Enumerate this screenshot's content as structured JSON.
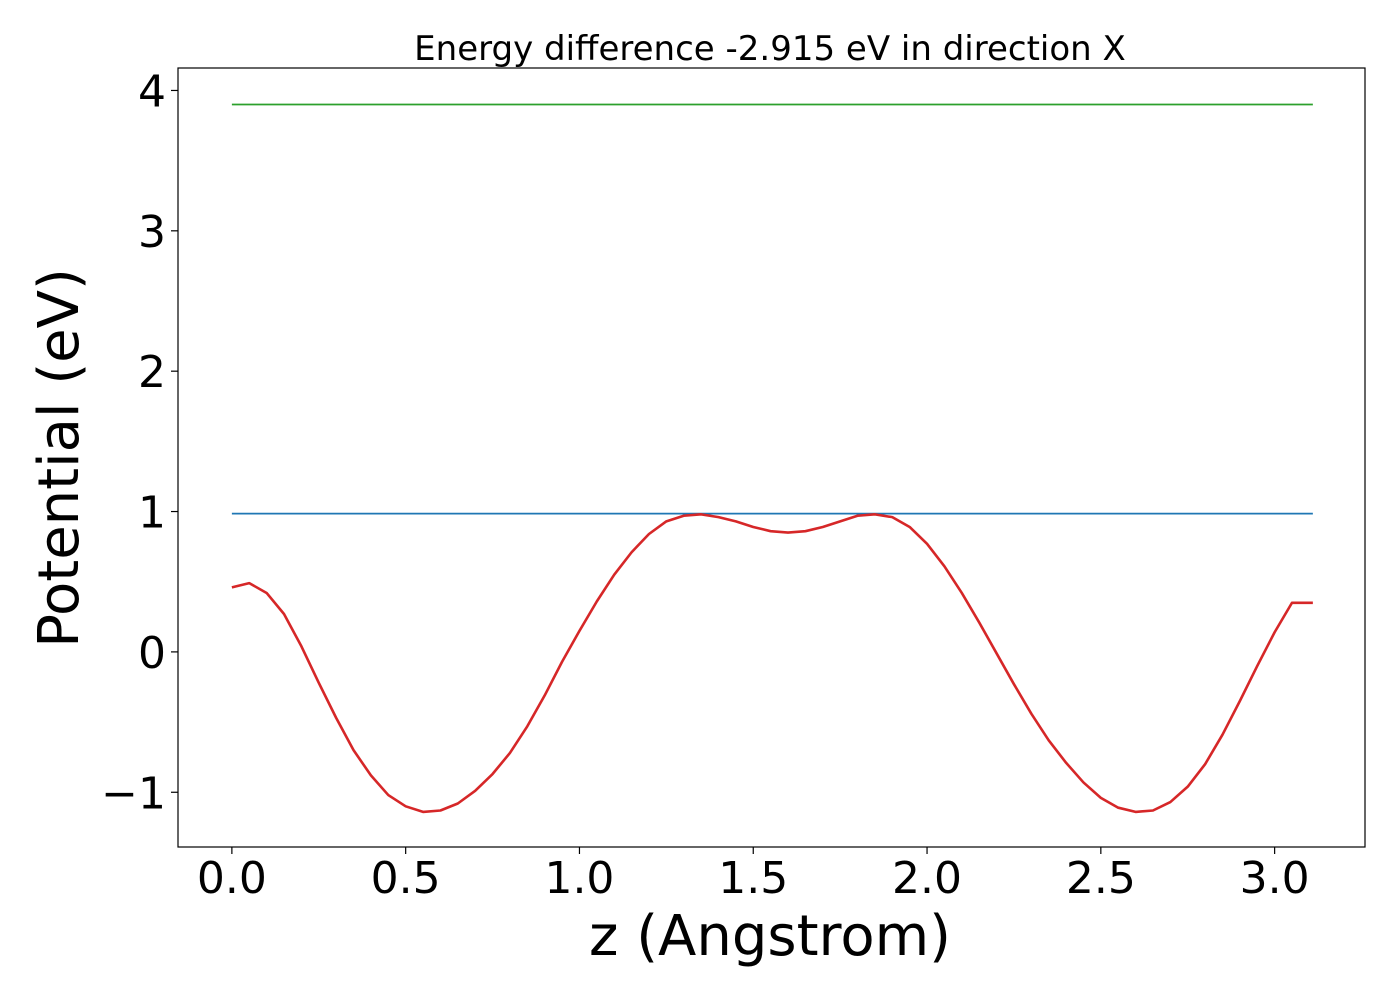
{
  "chart_data": {
    "type": "line",
    "title": "Energy difference -2.915 eV in direction X",
    "xlabel": "z (Angstrom)",
    "ylabel": "Potential (eV)",
    "xlim": [
      -0.155,
      3.26
    ],
    "ylim": [
      -1.39,
      4.16
    ],
    "xticks": [
      0.0,
      0.5,
      1.0,
      1.5,
      2.0,
      2.5,
      3.0
    ],
    "xtick_labels": [
      "0.0",
      "0.5",
      "1.0",
      "1.5",
      "2.0",
      "2.5",
      "3.0"
    ],
    "yticks": [
      -1,
      0,
      1,
      2,
      3,
      4
    ],
    "ytick_labels": [
      "−1",
      "0",
      "1",
      "2",
      "3",
      "4"
    ],
    "grid": false,
    "legend": false,
    "series": [
      {
        "color": "#2ca02c",
        "x": [
          0.0,
          3.11
        ],
        "y": [
          3.9,
          3.9
        ]
      },
      {
        "color": "#1f77b4",
        "x": [
          0.0,
          3.11
        ],
        "y": [
          0.985,
          0.985
        ]
      },
      {
        "color": "#d62728",
        "x": [
          0.0,
          0.05,
          0.1,
          0.15,
          0.2,
          0.25,
          0.3,
          0.35,
          0.4,
          0.45,
          0.5,
          0.55,
          0.6,
          0.65,
          0.7,
          0.75,
          0.8,
          0.85,
          0.9,
          0.95,
          1.0,
          1.05,
          1.1,
          1.15,
          1.2,
          1.25,
          1.3,
          1.35,
          1.4,
          1.45,
          1.5,
          1.55,
          1.6,
          1.65,
          1.7,
          1.75,
          1.8,
          1.85,
          1.9,
          1.95,
          2.0,
          2.05,
          2.1,
          2.15,
          2.2,
          2.25,
          2.3,
          2.35,
          2.4,
          2.45,
          2.5,
          2.55,
          2.6,
          2.65,
          2.7,
          2.75,
          2.8,
          2.85,
          2.9,
          2.95,
          3.0,
          3.05,
          3.11
        ],
        "y": [
          0.46,
          0.49,
          0.42,
          0.27,
          0.04,
          -0.22,
          -0.47,
          -0.7,
          -0.88,
          -1.02,
          -1.1,
          -1.14,
          -1.13,
          -1.08,
          -0.99,
          -0.87,
          -0.72,
          -0.53,
          -0.31,
          -0.07,
          0.15,
          0.36,
          0.55,
          0.71,
          0.84,
          0.93,
          0.97,
          0.98,
          0.96,
          0.93,
          0.89,
          0.86,
          0.85,
          0.86,
          0.89,
          0.93,
          0.97,
          0.98,
          0.96,
          0.89,
          0.77,
          0.61,
          0.42,
          0.21,
          -0.01,
          -0.23,
          -0.44,
          -0.63,
          -0.79,
          -0.93,
          -1.04,
          -1.11,
          -1.14,
          -1.13,
          -1.07,
          -0.96,
          -0.8,
          -0.59,
          -0.35,
          -0.1,
          0.14,
          0.35,
          0.35
        ]
      }
    ]
  }
}
